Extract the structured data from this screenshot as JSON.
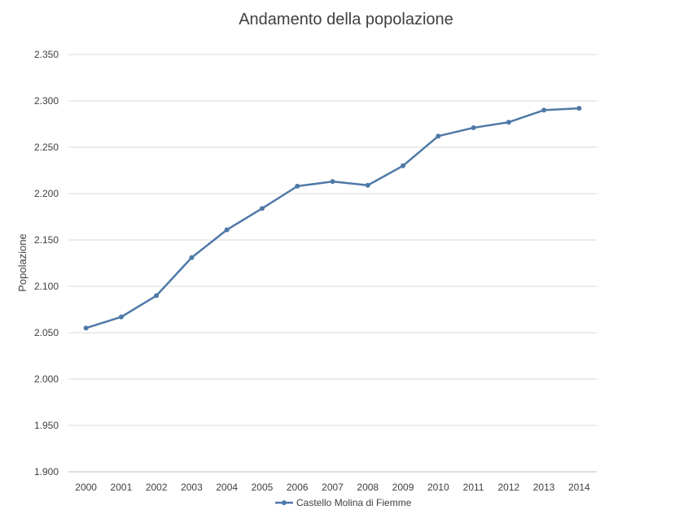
{
  "chart_data": {
    "type": "line",
    "title": "Andamento della popolazione",
    "xlabel": "",
    "ylabel": "Popolazione",
    "categories": [
      "2000",
      "2001",
      "2002",
      "2003",
      "2004",
      "2005",
      "2006",
      "2007",
      "2008",
      "2009",
      "2010",
      "2011",
      "2012",
      "2013",
      "2014"
    ],
    "y_ticks": [
      1900,
      1950,
      2000,
      2050,
      2100,
      2150,
      2200,
      2250,
      2300,
      2350
    ],
    "y_tick_labels": [
      "1.900",
      "1.950",
      "2.000",
      "2.050",
      "2.100",
      "2.150",
      "2.200",
      "2.250",
      "2.300",
      "2.350"
    ],
    "ylim": [
      1900,
      2350
    ],
    "grid": true,
    "legend_position": "bottom",
    "series": [
      {
        "name": "Castello Molina di Fiemme",
        "color": "#4f79a8",
        "values": [
          2055,
          2067,
          2090,
          2131,
          2161,
          2184,
          2208,
          2213,
          2209,
          2230,
          2262,
          2271,
          2277,
          2290,
          2292
        ]
      }
    ]
  }
}
